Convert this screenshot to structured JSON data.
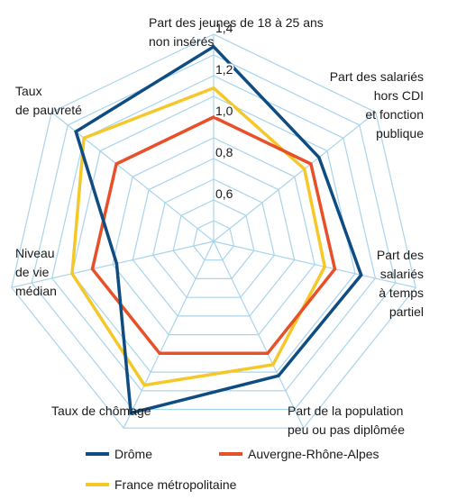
{
  "chart_data": {
    "type": "radar",
    "title": "",
    "axes": [
      {
        "lines": [
          "Part des jeunes de 18 à 25 ans",
          "non insérés"
        ]
      },
      {
        "lines": [
          "Part des salariés",
          "hors CDI",
          "et fonction",
          "publique"
        ]
      },
      {
        "lines": [
          "Part des",
          "salariés",
          "à temps",
          "partiel"
        ]
      },
      {
        "lines": [
          "Part de la population",
          "peu ou pas diplômée"
        ]
      },
      {
        "lines": [
          "Taux de chômage"
        ]
      },
      {
        "lines": [
          "Niveau",
          "de vie",
          "médian"
        ]
      },
      {
        "lines": [
          "Taux",
          "de pauvreté"
        ]
      }
    ],
    "rmin": 0.4,
    "rmax": 1.4,
    "rings": [
      0.5,
      0.6,
      0.7,
      0.8,
      0.9,
      1.0,
      1.1,
      1.2,
      1.3,
      1.4
    ],
    "tick_labels": [
      {
        "value": 0.6,
        "text": "0,6"
      },
      {
        "value": 0.8,
        "text": "0,8"
      },
      {
        "value": 1.0,
        "text": "1,0"
      },
      {
        "value": 1.2,
        "text": "1,2"
      },
      {
        "value": 1.4,
        "text": "1,4"
      }
    ],
    "grid_color": "#a8d4ec",
    "series": [
      {
        "name": "Drôme",
        "color": "#0f4c81",
        "values": [
          1.34,
          1.05,
          1.13,
          1.12,
          1.32,
          0.88,
          1.25
        ]
      },
      {
        "name": "Auvergne-Rhône-Alpes",
        "color": "#e8502a",
        "values": [
          1.0,
          1.0,
          1.0,
          1.0,
          1.0,
          1.0,
          1.0
        ]
      },
      {
        "name": "France métropolitaine",
        "color": "#f5c82a",
        "values": [
          1.14,
          0.96,
          0.95,
          1.06,
          1.17,
          1.1,
          1.2
        ]
      }
    ],
    "legend_position": "bottom"
  }
}
